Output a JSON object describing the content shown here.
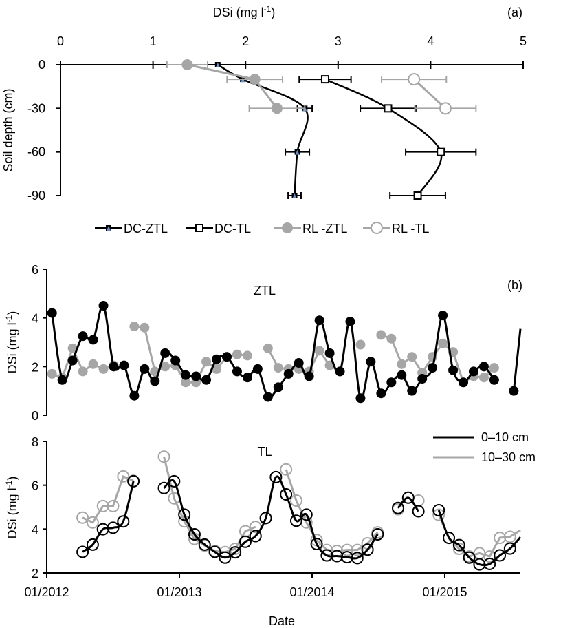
{
  "chart_data": [
    {
      "panel_label": "(a)",
      "type": "line",
      "title": "",
      "xlabel": "DSi (mg l-1)",
      "xlabel_main": "DSi (mg l",
      "xlabel_sup": "-1",
      "xlabel_close": ")",
      "ylabel": "Soil depth (cm)",
      "xlim": [
        0,
        5
      ],
      "ylim": [
        -90,
        0
      ],
      "x_ticks": [
        "0",
        "1",
        "2",
        "3",
        "4",
        "5"
      ],
      "y_ticks": [
        "0",
        "-30",
        "-60",
        "-90"
      ],
      "legend_position": "bottom",
      "series": [
        {
          "name": "DC-ZTL",
          "color": "#000000",
          "marker": "filled-square-with-triangle",
          "smooth": true,
          "depth": [
            0,
            -10,
            -30,
            -60,
            -90
          ],
          "values": [
            1.7,
            1.97,
            2.64,
            2.56,
            2.53
          ],
          "err": [
            0,
            0,
            0.08,
            0.13,
            0.07
          ]
        },
        {
          "name": "DC-TL",
          "color": "#000000",
          "marker": "open-square",
          "smooth": true,
          "depth": [
            -10,
            -30,
            -60,
            -90
          ],
          "values": [
            2.86,
            3.54,
            4.11,
            3.86
          ],
          "err": [
            0.28,
            0.3,
            0.38,
            0.3
          ]
        },
        {
          "name": "RL -ZTL",
          "color": "#a6a6a6",
          "marker": "filled-circle",
          "smooth": false,
          "depth": [
            0,
            -10,
            -30
          ],
          "values": [
            1.37,
            2.1,
            2.34
          ],
          "err": [
            0.22,
            0.3,
            0.3
          ]
        },
        {
          "name": "RL -TL",
          "color": "#a6a6a6",
          "marker": "open-circle",
          "smooth": false,
          "depth": [
            -10,
            -30
          ],
          "values": [
            3.82,
            4.16
          ],
          "err": [
            0.35,
            0.33
          ]
        }
      ]
    },
    {
      "panel_label": "(b)",
      "subtitle": "ZTL",
      "type": "line",
      "ylabel_main": "DSi (mg l",
      "ylabel_sup": "-1",
      "ylabel_close": ")",
      "ylim": [
        0,
        6
      ],
      "y_ticks": [
        "0",
        "2",
        "4",
        "6"
      ],
      "x_start": 2012.04,
      "x_step_years": 0.0775,
      "series": [
        {
          "name": "0-10 cm",
          "color": "#000000",
          "marker": "filled-circle",
          "values": [
            4.2,
            1.45,
            2.25,
            3.25,
            3.1,
            4.5,
            2.0,
            2.05,
            0.8,
            1.9,
            1.4,
            2.55,
            2.25,
            1.65,
            1.6,
            1.45,
            2.3,
            2.4,
            1.8,
            1.55,
            1.9,
            0.75,
            1.15,
            1.7,
            2.15,
            1.6,
            3.9,
            2.55,
            1.8,
            3.85,
            0.7,
            2.2,
            0.9,
            1.35,
            1.65,
            1.0,
            1.5,
            1.95,
            4.1,
            1.85,
            1.35,
            1.8,
            2.0,
            1.45
          ],
          "extra_points": [
            {
              "x": 2015.52,
              "y": 1.0,
              "marker": true
            },
            {
              "x": 2015.57,
              "y": 3.55,
              "marker": false
            }
          ]
        },
        {
          "name": "10-30 cm",
          "color": "#a6a6a6",
          "marker": "filled-circle",
          "values": [
            1.7,
            1.55,
            2.75,
            1.8,
            2.1,
            1.9,
            2.05,
            null,
            3.65,
            3.6,
            1.8,
            2.0,
            2.05,
            1.35,
            1.35,
            2.2,
            1.9,
            2.4,
            2.5,
            2.45,
            null,
            2.75,
            1.95,
            1.9,
            1.9,
            1.8,
            2.65,
            2.05,
            1.8,
            null,
            2.9,
            null,
            3.3,
            3.15,
            2.1,
            2.4,
            1.75,
            2.4,
            2.95,
            2.6,
            1.35,
            1.6,
            1.55,
            1.95
          ]
        }
      ]
    },
    {
      "subtitle": "TL",
      "type": "line",
      "xlabel": "Date",
      "ylabel_main": "DSi (mg l",
      "ylabel_sup": "-1",
      "ylabel_close": ")",
      "ylim": [
        2,
        8
      ],
      "y_ticks": [
        "2",
        "4",
        "6",
        "8"
      ],
      "x_range": [
        2012.0,
        2015.57
      ],
      "x_ticks": [
        {
          "x": 2012,
          "label": "01/2012"
        },
        {
          "x": 2013,
          "label": "01/2013"
        },
        {
          "x": 2014,
          "label": "01/2014"
        },
        {
          "x": 2015,
          "label": "01/2015"
        }
      ],
      "x_start": 2012.27,
      "x_step_years": 0.0767,
      "legend_position": "top-right",
      "legend": [
        {
          "label": "0–10 cm",
          "color": "#000000"
        },
        {
          "label": "10–30 cm",
          "color": "#a6a6a6"
        }
      ],
      "series": [
        {
          "name": "0-10 cm",
          "color": "#000000",
          "marker": "open-circle",
          "values": [
            2.96,
            3.29,
            3.99,
            4.06,
            4.35,
            6.18,
            null,
            null,
            5.87,
            6.18,
            4.66,
            3.76,
            3.29,
            2.96,
            2.7,
            2.94,
            3.42,
            3.68,
            4.5,
            6.37,
            5.58,
            4.38,
            4.66,
            3.32,
            2.8,
            2.77,
            2.72,
            2.68,
            3.06,
            3.76,
            null,
            4.96,
            5.43,
            4.81,
            null,
            4.86,
            3.6,
            3.27,
            2.7,
            2.39,
            2.41,
            2.8,
            3.11
          ],
          "end_value": 3.63
        },
        {
          "name": "10-30 cm",
          "color": "#a6a6a6",
          "marker": "open-circle",
          "values": [
            4.52,
            4.3,
            5.05,
            5.05,
            6.4,
            6.2,
            null,
            null,
            7.3,
            5.4,
            4.35,
            3.55,
            3.25,
            3.0,
            2.95,
            3.1,
            3.9,
            4.1,
            null,
            null,
            6.72,
            5.3,
            4.3,
            3.5,
            3.05,
            3.0,
            3.05,
            3.05,
            3.35,
            3.85,
            null,
            4.9,
            null,
            5.3,
            null,
            4.65,
            3.6,
            3.1,
            2.75,
            2.9,
            2.75,
            3.6,
            3.65
          ],
          "end_value": 3.95
        }
      ]
    }
  ]
}
